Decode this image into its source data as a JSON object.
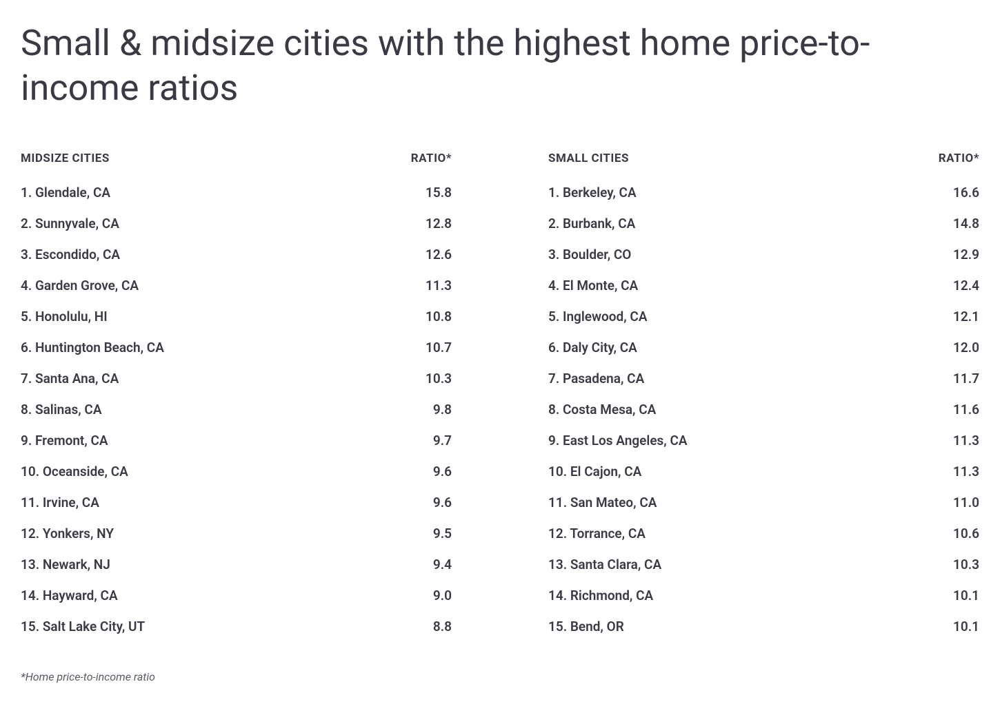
{
  "title": "Small & midsize cities with the highest home price-to-income ratios",
  "footnote": "*Home price-to-income ratio",
  "background_color": "#ffffff",
  "text_color": "#3a3a44",
  "footnote_color": "#5a5a64",
  "title_fontsize": 52,
  "header_fontsize": 17,
  "row_fontsize": 19,
  "footnote_fontsize": 16,
  "tables": {
    "midsize": {
      "header_label": "MIDSIZE CITIES",
      "ratio_label": "RATIO*",
      "rows": [
        {
          "city": "1. Glendale, CA",
          "ratio": "15.8"
        },
        {
          "city": "2. Sunnyvale, CA",
          "ratio": "12.8"
        },
        {
          "city": "3. Escondido, CA",
          "ratio": "12.6"
        },
        {
          "city": "4. Garden Grove, CA",
          "ratio": "11.3"
        },
        {
          "city": "5. Honolulu, HI",
          "ratio": "10.8"
        },
        {
          "city": "6. Huntington Beach, CA",
          "ratio": "10.7"
        },
        {
          "city": "7. Santa Ana, CA",
          "ratio": "10.3"
        },
        {
          "city": "8. Salinas, CA",
          "ratio": "9.8"
        },
        {
          "city": "9. Fremont, CA",
          "ratio": "9.7"
        },
        {
          "city": "10. Oceanside, CA",
          "ratio": "9.6"
        },
        {
          "city": "11. Irvine, CA",
          "ratio": "9.6"
        },
        {
          "city": "12. Yonkers, NY",
          "ratio": "9.5"
        },
        {
          "city": "13. Newark, NJ",
          "ratio": "9.4"
        },
        {
          "city": "14. Hayward, CA",
          "ratio": "9.0"
        },
        {
          "city": "15. Salt Lake City, UT",
          "ratio": "8.8"
        }
      ]
    },
    "small": {
      "header_label": "SMALL CITIES",
      "ratio_label": "RATIO*",
      "rows": [
        {
          "city": "1. Berkeley, CA",
          "ratio": "16.6"
        },
        {
          "city": "2. Burbank, CA",
          "ratio": "14.8"
        },
        {
          "city": "3. Boulder, CO",
          "ratio": "12.9"
        },
        {
          "city": "4. El Monte, CA",
          "ratio": "12.4"
        },
        {
          "city": "5. Inglewood, CA",
          "ratio": "12.1"
        },
        {
          "city": "6. Daly City, CA",
          "ratio": "12.0"
        },
        {
          "city": "7. Pasadena, CA",
          "ratio": "11.7"
        },
        {
          "city": "8. Costa Mesa, CA",
          "ratio": "11.6"
        },
        {
          "city": "9. East Los Angeles, CA",
          "ratio": "11.3"
        },
        {
          "city": "10. El Cajon, CA",
          "ratio": "11.3"
        },
        {
          "city": "11. San Mateo, CA",
          "ratio": "11.0"
        },
        {
          "city": "12. Torrance, CA",
          "ratio": "10.6"
        },
        {
          "city": "13. Santa Clara, CA",
          "ratio": "10.3"
        },
        {
          "city": "14. Richmond, CA",
          "ratio": "10.1"
        },
        {
          "city": "15. Bend, OR",
          "ratio": "10.1"
        }
      ]
    }
  }
}
